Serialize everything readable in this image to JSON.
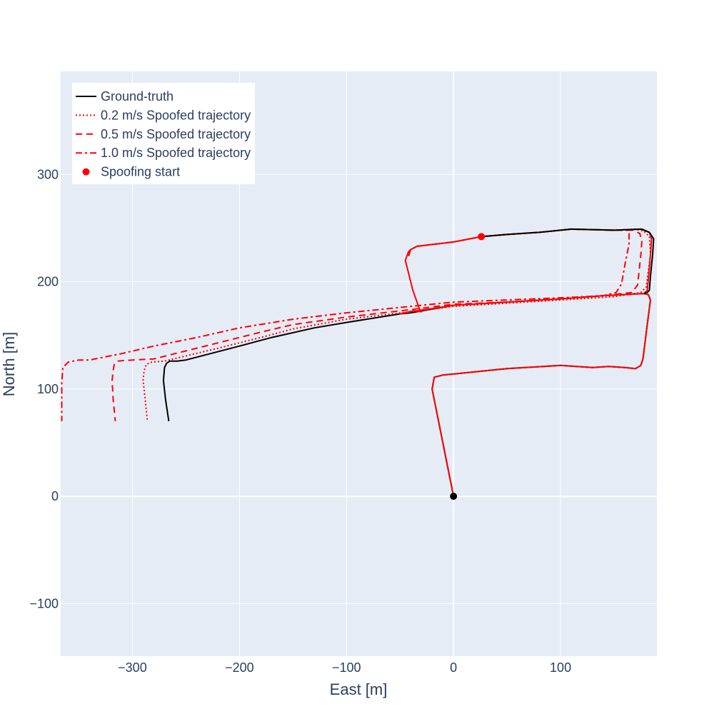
{
  "chart_data": {
    "type": "line",
    "title": "",
    "xlabel": "East [m]",
    "ylabel": "North [m]",
    "xlim": [
      -367,
      190
    ],
    "ylim": [
      -149,
      396
    ],
    "xticks": [
      -300,
      -200,
      -100,
      0,
      100
    ],
    "yticks": [
      -100,
      0,
      100,
      200,
      300
    ],
    "xtick_labels": [
      "−300",
      "−200",
      "−100",
      "0",
      "100"
    ],
    "ytick_labels": [
      "−100",
      "0",
      "100",
      "200",
      "300"
    ],
    "grid": true,
    "legend_position": "top-left",
    "background": "#e5ecf6",
    "series": [
      {
        "name": "Ground-truth",
        "color": "#000000",
        "dash": "solid",
        "points": [
          [
            0,
            0
          ],
          [
            -20,
            100
          ],
          [
            -18,
            111
          ],
          [
            -10,
            113
          ],
          [
            30,
            117
          ],
          [
            50,
            119
          ],
          [
            100,
            122
          ],
          [
            130,
            120
          ],
          [
            145,
            121
          ],
          [
            160,
            120
          ],
          [
            170,
            119
          ],
          [
            175,
            122
          ],
          [
            177,
            128
          ],
          [
            181,
            160
          ],
          [
            184,
            183
          ],
          [
            182,
            188
          ],
          [
            178,
            189
          ],
          [
            140,
            187
          ],
          [
            100,
            184
          ],
          [
            50,
            181
          ],
          [
            0,
            178
          ],
          [
            -40,
            171
          ],
          [
            -50,
            170
          ],
          [
            -100,
            162
          ],
          [
            -130,
            157
          ],
          [
            -170,
            148
          ],
          [
            -200,
            140
          ],
          [
            -250,
            127
          ],
          [
            -258,
            126
          ],
          [
            -265,
            126
          ],
          [
            -268,
            124
          ],
          [
            -270,
            120
          ],
          [
            -271,
            108
          ],
          [
            -269,
            90
          ],
          [
            -266,
            70
          ]
        ]
      },
      {
        "name": "0.2 m/s Spoofed trajectory",
        "color": "#ff0000",
        "dash": "dot",
        "points": [
          [
            -42,
            224
          ],
          [
            -40,
            230
          ],
          [
            -34,
            233
          ],
          [
            0,
            237
          ],
          [
            26,
            242
          ],
          [
            50,
            244
          ],
          [
            80,
            246
          ],
          [
            110,
            249
          ],
          [
            150,
            248
          ],
          [
            170,
            249
          ],
          [
            178,
            247
          ],
          [
            183,
            242
          ],
          [
            184,
            225
          ],
          [
            180,
            195
          ],
          [
            175,
            190
          ],
          [
            150,
            186
          ],
          [
            100,
            183
          ],
          [
            50,
            180
          ],
          [
            0,
            177
          ],
          [
            -40,
            172
          ],
          [
            -100,
            165
          ],
          [
            -150,
            156
          ],
          [
            -180,
            148
          ],
          [
            -220,
            138
          ],
          [
            -270,
            126
          ],
          [
            -282,
            125
          ],
          [
            -287,
            123
          ],
          [
            -289,
            117
          ],
          [
            -290,
            108
          ],
          [
            -288,
            90
          ],
          [
            -286,
            70
          ]
        ]
      },
      {
        "name": "0.5 m/s Spoofed trajectory",
        "color": "#ff0000",
        "dash": "dash",
        "points": [
          [
            -42,
            224
          ],
          [
            -40,
            230
          ],
          [
            -34,
            233
          ],
          [
            0,
            237
          ],
          [
            26,
            242
          ],
          [
            50,
            244
          ],
          [
            80,
            246
          ],
          [
            110,
            249
          ],
          [
            150,
            248
          ],
          [
            168,
            248
          ],
          [
            174,
            245
          ],
          [
            176,
            238
          ],
          [
            175,
            225
          ],
          [
            172,
            197
          ],
          [
            167,
            190
          ],
          [
            140,
            187
          ],
          [
            100,
            184
          ],
          [
            50,
            181
          ],
          [
            0,
            179
          ],
          [
            -40,
            174
          ],
          [
            -100,
            167
          ],
          [
            -150,
            160
          ],
          [
            -180,
            153
          ],
          [
            -220,
            143
          ],
          [
            -280,
            128
          ],
          [
            -300,
            127
          ],
          [
            -314,
            126
          ],
          [
            -317,
            123
          ],
          [
            -318,
            117
          ],
          [
            -319,
            108
          ],
          [
            -318,
            90
          ],
          [
            -316,
            70
          ]
        ]
      },
      {
        "name": "1.0 m/s Spoofed trajectory",
        "color": "#ff0000",
        "dash": "dashdot",
        "points": [
          [
            -42,
            224
          ],
          [
            -40,
            230
          ],
          [
            -34,
            233
          ],
          [
            0,
            237
          ],
          [
            26,
            242
          ],
          [
            50,
            244
          ],
          [
            80,
            246
          ],
          [
            110,
            249
          ],
          [
            150,
            248
          ],
          [
            162,
            248
          ],
          [
            164,
            245
          ],
          [
            164,
            235
          ],
          [
            163,
            230
          ],
          [
            160,
            215
          ],
          [
            157,
            198
          ],
          [
            152,
            190
          ],
          [
            140,
            187
          ],
          [
            100,
            185
          ],
          [
            50,
            183
          ],
          [
            0,
            181
          ],
          [
            -40,
            177
          ],
          [
            -100,
            171
          ],
          [
            -150,
            165
          ],
          [
            -200,
            157
          ],
          [
            -240,
            148
          ],
          [
            -280,
            140
          ],
          [
            -310,
            133
          ],
          [
            -330,
            129
          ],
          [
            -340,
            127
          ],
          [
            -350,
            127
          ],
          [
            -360,
            125
          ],
          [
            -365,
            120
          ],
          [
            -366,
            105
          ],
          [
            -366,
            90
          ],
          [
            -366,
            70
          ]
        ]
      },
      {
        "name": "",
        "color": "#ff0000",
        "dash": "solid",
        "points": [
          [
            0,
            0
          ],
          [
            -20,
            100
          ],
          [
            -18,
            111
          ],
          [
            -10,
            113
          ],
          [
            30,
            117
          ],
          [
            50,
            119
          ],
          [
            100,
            122
          ],
          [
            130,
            120
          ],
          [
            145,
            121
          ],
          [
            160,
            120
          ],
          [
            170,
            119
          ],
          [
            175,
            122
          ],
          [
            177,
            128
          ],
          [
            181,
            160
          ],
          [
            184,
            183
          ],
          [
            182,
            188
          ],
          [
            178,
            189
          ],
          [
            140,
            187
          ],
          [
            100,
            184
          ],
          [
            50,
            181
          ],
          [
            0,
            178
          ],
          [
            -40,
            172
          ],
          [
            -50,
            170
          ],
          [
            -37,
            173
          ],
          [
            -30,
            172
          ],
          [
            -32,
            175
          ],
          [
            -38,
            192
          ],
          [
            -45,
            220
          ],
          [
            -42,
            228
          ],
          [
            -40,
            230
          ],
          [
            -34,
            233
          ],
          [
            0,
            237
          ],
          [
            26,
            242
          ],
          [
            50,
            244
          ],
          [
            80,
            246
          ],
          [
            110,
            249
          ],
          [
            150,
            248
          ],
          [
            175,
            249
          ],
          [
            183,
            246
          ],
          [
            185,
            240
          ],
          [
            184,
            225
          ],
          [
            182,
            202
          ],
          [
            181,
            192
          ],
          [
            178,
            189
          ]
        ]
      },
      {
        "name": "",
        "color": "#000000",
        "dash": "solid",
        "points": [
          [
            26,
            242
          ],
          [
            50,
            244
          ],
          [
            80,
            246
          ],
          [
            110,
            249
          ],
          [
            150,
            248
          ],
          [
            176,
            249
          ],
          [
            183,
            246
          ],
          [
            187,
            240
          ],
          [
            186,
            225
          ],
          [
            184,
            205
          ],
          [
            183,
            192
          ],
          [
            181,
            190
          ],
          [
            178,
            189
          ]
        ]
      }
    ],
    "markers": [
      {
        "name": "Spoofing start",
        "x": 26,
        "y": 242,
        "color": "#ff0000"
      },
      {
        "name": "",
        "x": 0,
        "y": 0,
        "color": "#000000"
      }
    ]
  }
}
